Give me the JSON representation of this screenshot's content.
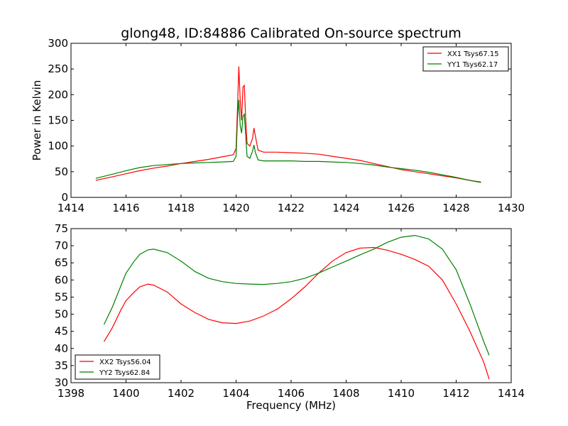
{
  "figure_title": "glong48, ID:84886 Calibrated On-source spectrum",
  "chart_data": [
    {
      "type": "line",
      "title": "glong48, ID:84886 Calibrated On-source spectrum",
      "xlabel": "",
      "ylabel": "Power in Kelvin",
      "xlim": [
        1414,
        1430
      ],
      "ylim": [
        0,
        300
      ],
      "xticks": [
        1414,
        1416,
        1418,
        1420,
        1422,
        1424,
        1426,
        1428,
        1430
      ],
      "yticks": [
        0,
        50,
        100,
        150,
        200,
        250,
        300
      ],
      "grid": false,
      "legend_position": "top-right",
      "series": [
        {
          "name": "XX1 Tsys67.15",
          "color": "#ff0000",
          "x": [
            1414.9,
            1415.5,
            1416.0,
            1416.5,
            1417.0,
            1417.5,
            1418.0,
            1418.5,
            1419.0,
            1419.5,
            1419.9,
            1420.0,
            1420.05,
            1420.1,
            1420.15,
            1420.2,
            1420.25,
            1420.3,
            1420.35,
            1420.4,
            1420.5,
            1420.6,
            1420.65,
            1420.7,
            1420.8,
            1421.0,
            1421.5,
            1422.0,
            1422.5,
            1423.0,
            1423.5,
            1424.0,
            1424.5,
            1425.0,
            1425.5,
            1426.0,
            1426.5,
            1427.0,
            1427.5,
            1428.0,
            1428.5,
            1428.9
          ],
          "values": [
            33,
            40,
            46,
            52,
            57,
            61,
            66,
            70,
            74,
            79,
            83,
            95,
            170,
            255,
            190,
            150,
            215,
            218,
            150,
            105,
            100,
            115,
            135,
            120,
            92,
            88,
            88,
            87,
            86,
            84,
            80,
            76,
            72,
            66,
            60,
            54,
            50,
            46,
            42,
            38,
            33,
            30
          ]
        },
        {
          "name": "YY1 Tsys62.17",
          "color": "#008000",
          "x": [
            1414.9,
            1415.5,
            1416.0,
            1416.5,
            1417.0,
            1417.5,
            1418.0,
            1418.5,
            1419.0,
            1419.5,
            1419.9,
            1420.0,
            1420.05,
            1420.1,
            1420.15,
            1420.2,
            1420.25,
            1420.3,
            1420.35,
            1420.4,
            1420.5,
            1420.6,
            1420.65,
            1420.7,
            1420.8,
            1421.0,
            1421.5,
            1422.0,
            1422.5,
            1423.0,
            1423.5,
            1424.0,
            1424.5,
            1425.0,
            1425.5,
            1426.0,
            1426.5,
            1427.0,
            1427.5,
            1428.0,
            1428.5,
            1428.9
          ],
          "values": [
            37,
            45,
            52,
            58,
            62,
            64,
            66,
            67,
            68,
            69,
            70,
            80,
            150,
            190,
            140,
            125,
            158,
            162,
            120,
            80,
            76,
            90,
            102,
            88,
            73,
            71,
            71,
            71,
            70,
            70,
            69,
            68,
            66,
            63,
            59,
            56,
            53,
            49,
            44,
            39,
            33,
            29
          ]
        }
      ]
    },
    {
      "type": "line",
      "title": "",
      "xlabel": "Frequency (MHz)",
      "ylabel": "",
      "xlim": [
        1398,
        1414
      ],
      "ylim": [
        30,
        75
      ],
      "xticks": [
        1398,
        1400,
        1402,
        1404,
        1406,
        1408,
        1410,
        1412,
        1414
      ],
      "yticks": [
        30,
        35,
        40,
        45,
        50,
        55,
        60,
        65,
        70,
        75
      ],
      "grid": false,
      "legend_position": "bottom-left",
      "series": [
        {
          "name": "XX2 Tsys56.04",
          "color": "#ff0000",
          "x": [
            1399.2,
            1399.5,
            1399.8,
            1400.0,
            1400.3,
            1400.5,
            1400.8,
            1401.0,
            1401.5,
            1402.0,
            1402.5,
            1403.0,
            1403.5,
            1404.0,
            1404.5,
            1405.0,
            1405.5,
            1406.0,
            1406.5,
            1407.0,
            1407.5,
            1408.0,
            1408.5,
            1409.0,
            1409.5,
            1410.0,
            1410.5,
            1411.0,
            1411.5,
            1412.0,
            1412.5,
            1413.0,
            1413.2
          ],
          "values": [
            42,
            46,
            51,
            54,
            56.5,
            58,
            58.8,
            58.5,
            56.5,
            53,
            50.5,
            48.5,
            47.5,
            47.3,
            48,
            49.5,
            51.5,
            54.5,
            58,
            62,
            65.5,
            68,
            69.3,
            69.5,
            68.7,
            67.5,
            66,
            64,
            60,
            53,
            45,
            36,
            31
          ]
        },
        {
          "name": "YY2 Tsys62.84",
          "color": "#008000",
          "x": [
            1399.2,
            1399.5,
            1399.8,
            1400.0,
            1400.3,
            1400.5,
            1400.8,
            1401.0,
            1401.5,
            1402.0,
            1402.5,
            1403.0,
            1403.5,
            1404.0,
            1404.5,
            1405.0,
            1405.5,
            1406.0,
            1406.5,
            1407.0,
            1407.5,
            1408.0,
            1408.5,
            1409.0,
            1409.5,
            1410.0,
            1410.5,
            1411.0,
            1411.5,
            1412.0,
            1412.5,
            1413.0,
            1413.2
          ],
          "values": [
            47,
            52,
            58,
            62,
            65.5,
            67.5,
            68.8,
            69,
            68,
            65.5,
            62.5,
            60.5,
            59.5,
            59,
            58.8,
            58.7,
            59,
            59.5,
            60.5,
            62,
            63.8,
            65.5,
            67.3,
            69,
            71,
            72.5,
            73,
            72,
            69,
            63,
            53,
            42,
            38
          ]
        }
      ]
    }
  ]
}
